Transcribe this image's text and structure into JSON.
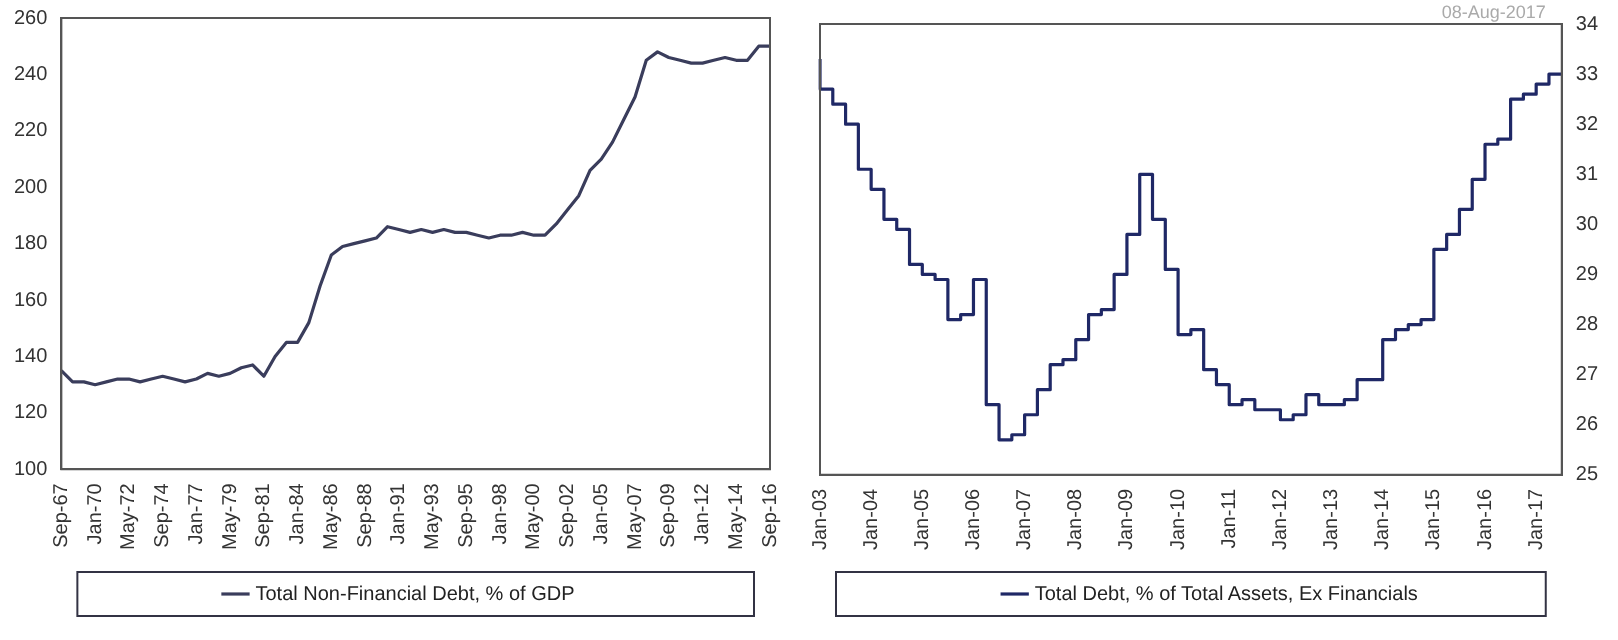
{
  "chart_data": [
    {
      "type": "line",
      "categories": [
        "Sep-67",
        null,
        null,
        "Jan-70",
        null,
        null,
        "May-72",
        null,
        null,
        "Sep-74",
        null,
        null,
        "Jan-77",
        null,
        null,
        "May-79",
        null,
        null,
        "Sep-81",
        null,
        null,
        "Jan-84",
        null,
        null,
        "May-86",
        null,
        null,
        "Sep-88",
        null,
        null,
        "Jan-91",
        null,
        null,
        "May-93",
        null,
        null,
        "Sep-95",
        null,
        null,
        "Jan-98",
        null,
        null,
        "May-00",
        null,
        null,
        "Sep-02",
        null,
        null,
        "Jan-05",
        null,
        null,
        "May-07",
        null,
        null,
        "Sep-09",
        null,
        null,
        "Jan-12",
        null,
        null,
        "May-14",
        null,
        null,
        "Sep-16"
      ],
      "series": [
        {
          "name": "Total Non-Financial Debt, % of GDP",
          "color": "#3a3d5c",
          "values": [
            135,
            131,
            131,
            130,
            131,
            132,
            132,
            131,
            132,
            133,
            132,
            131,
            132,
            134,
            133,
            134,
            136,
            137,
            133,
            140,
            145,
            145,
            152,
            165,
            176,
            179,
            180,
            181,
            182,
            186,
            185,
            184,
            185,
            184,
            185,
            184,
            184,
            183,
            182,
            183,
            183,
            184,
            183,
            183,
            187,
            192,
            197,
            206,
            210,
            216,
            224,
            232,
            245,
            248,
            246,
            245,
            244,
            244,
            245,
            246,
            245,
            245,
            250,
            250
          ]
        }
      ],
      "ylim": [
        100,
        260
      ],
      "yticks": [
        100,
        120,
        140,
        160,
        180,
        200,
        220,
        240,
        260
      ],
      "legend": "bottom"
    },
    {
      "type": "step",
      "categories": [
        "Jan-03",
        null,
        null,
        null,
        "Jan-04",
        null,
        null,
        null,
        "Jan-05",
        null,
        null,
        null,
        "Jan-06",
        null,
        null,
        null,
        "Jan-07",
        null,
        null,
        null,
        "Jan-08",
        null,
        null,
        null,
        "Jan-09",
        null,
        null,
        null,
        "Jan-10",
        null,
        null,
        null,
        "Jan-11",
        null,
        null,
        null,
        "Jan-12",
        null,
        null,
        null,
        "Jan-13",
        null,
        null,
        null,
        "Jan-14",
        null,
        null,
        null,
        "Jan-15",
        null,
        null,
        null,
        "Jan-16",
        null,
        null,
        null,
        "Jan-17",
        null,
        null
      ],
      "series": [
        {
          "name": "Total Debt, % of Total Assets, Ex Financials",
          "color": "#1f2866",
          "axis": "y2",
          "values": [
            33.3,
            32.7,
            32.4,
            32.0,
            31.1,
            30.7,
            30.1,
            29.9,
            29.2,
            29.0,
            28.9,
            28.1,
            28.2,
            28.9,
            26.4,
            25.7,
            25.8,
            26.2,
            26.7,
            27.2,
            27.3,
            27.7,
            28.2,
            28.3,
            29.0,
            29.8,
            31.0,
            30.1,
            29.1,
            27.8,
            27.9,
            27.1,
            26.8,
            26.4,
            26.5,
            26.3,
            26.3,
            26.1,
            26.2,
            26.6,
            26.4,
            26.4,
            26.5,
            26.9,
            26.9,
            27.7,
            27.9,
            28.0,
            28.1,
            29.5,
            29.8,
            30.3,
            30.9,
            31.6,
            31.7,
            32.5,
            32.6,
            32.8,
            33.0
          ]
        }
      ],
      "y2lim": [
        25,
        34
      ],
      "y2ticks": [
        25,
        26,
        27,
        28,
        29,
        30,
        31,
        32,
        33,
        34
      ],
      "legend": "bottom",
      "annotations": [
        "08-Aug-2017"
      ]
    }
  ]
}
